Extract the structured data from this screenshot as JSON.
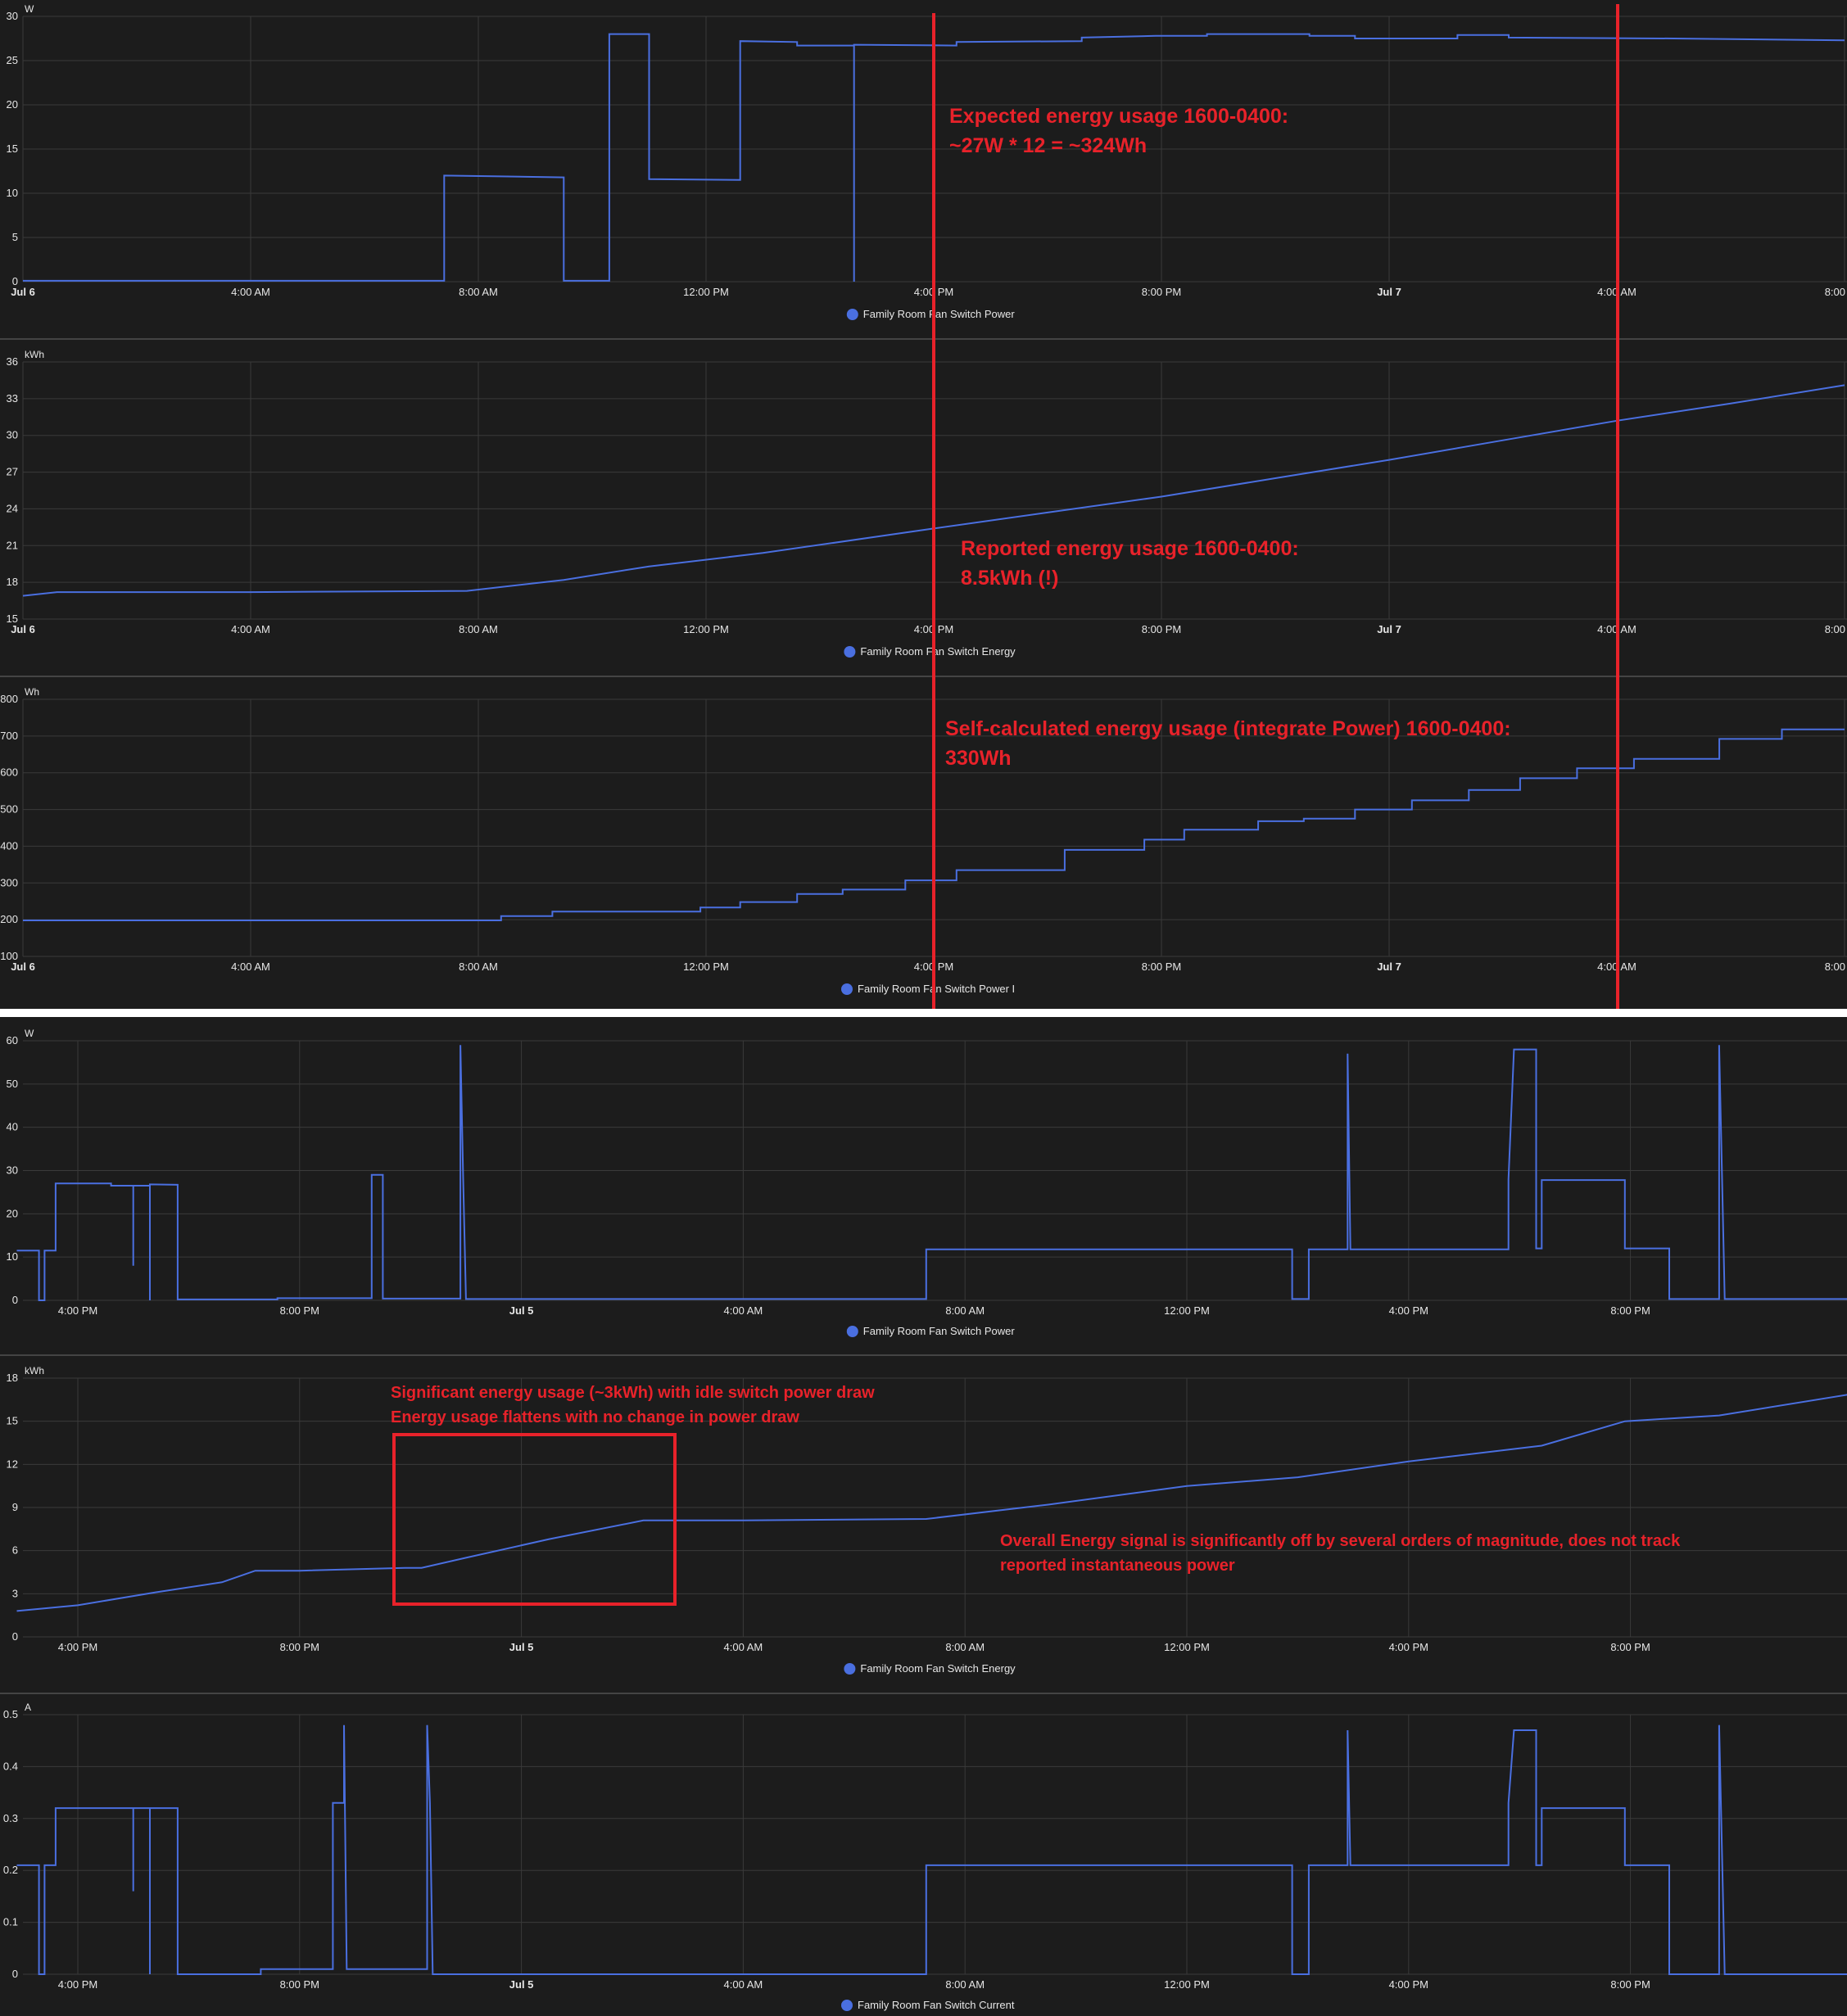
{
  "colors": {
    "background": "#1c1c1c",
    "series": "#4a6fe0",
    "annotation": "#e8222a",
    "grid": "#3a3a3a"
  },
  "chart_data": [
    {
      "type": "line",
      "unit": "W",
      "legend": "Family Room Fan Switch Power",
      "ylim": [
        0,
        30
      ],
      "yticks": [
        0,
        5,
        10,
        15,
        20,
        25,
        30
      ],
      "xlim": [
        0,
        32
      ],
      "xticks": [
        {
          "at": 0,
          "label": "Jul 6",
          "bold": true
        },
        {
          "at": 4,
          "label": "4:00 AM"
        },
        {
          "at": 8,
          "label": "8:00 AM"
        },
        {
          "at": 12,
          "label": "12:00 PM"
        },
        {
          "at": 16,
          "label": "4:00 PM"
        },
        {
          "at": 20,
          "label": "8:00 PM"
        },
        {
          "at": 24,
          "label": "Jul 7",
          "bold": true
        },
        {
          "at": 28,
          "label": "4:00 AM"
        },
        {
          "at": 32,
          "label": "8:00"
        }
      ],
      "points": [
        [
          0,
          0.1
        ],
        [
          7.4,
          0.1
        ],
        [
          7.4,
          12
        ],
        [
          9.5,
          11.8
        ],
        [
          9.5,
          0.1
        ],
        [
          10.3,
          0.1
        ],
        [
          10.3,
          28
        ],
        [
          11,
          28
        ],
        [
          11,
          11.6
        ],
        [
          12.6,
          11.5
        ],
        [
          12.6,
          27.2
        ],
        [
          13.6,
          27.1
        ],
        [
          13.6,
          26.7
        ],
        [
          14.6,
          26.7
        ],
        [
          14.6,
          0
        ],
        [
          14.6,
          26.8
        ],
        [
          16.4,
          26.7
        ],
        [
          16.4,
          27.1
        ],
        [
          18.6,
          27.2
        ],
        [
          18.6,
          27.6
        ],
        [
          19.9,
          27.8
        ],
        [
          20.8,
          27.8
        ],
        [
          20.8,
          28
        ],
        [
          22.6,
          28
        ],
        [
          22.6,
          27.8
        ],
        [
          23.4,
          27.8
        ],
        [
          23.4,
          27.5
        ],
        [
          25.2,
          27.5
        ],
        [
          25.2,
          27.9
        ],
        [
          26.1,
          27.9
        ],
        [
          26.1,
          27.6
        ],
        [
          29,
          27.5
        ],
        [
          32,
          27.3
        ]
      ]
    },
    {
      "type": "line",
      "unit": "kWh",
      "legend": "Family Room Fan Switch Energy",
      "ylim": [
        15,
        36
      ],
      "yticks": [
        15,
        18,
        21,
        24,
        27,
        30,
        33,
        36
      ],
      "xlim": [
        0,
        32
      ],
      "xticks": [
        {
          "at": 0,
          "label": "Jul 6",
          "bold": true
        },
        {
          "at": 4,
          "label": "4:00 AM"
        },
        {
          "at": 8,
          "label": "8:00 AM"
        },
        {
          "at": 12,
          "label": "12:00 PM"
        },
        {
          "at": 16,
          "label": "4:00 PM"
        },
        {
          "at": 20,
          "label": "8:00 PM"
        },
        {
          "at": 24,
          "label": "Jul 7",
          "bold": true
        },
        {
          "at": 28,
          "label": "4:00 AM"
        },
        {
          "at": 32,
          "label": "8:00"
        }
      ],
      "points": [
        [
          0,
          16.9
        ],
        [
          0.6,
          17.2
        ],
        [
          4,
          17.2
        ],
        [
          7.8,
          17.3
        ],
        [
          9.5,
          18.2
        ],
        [
          11,
          19.3
        ],
        [
          13,
          20.4
        ],
        [
          16,
          22.4
        ],
        [
          18,
          23.7
        ],
        [
          20,
          25
        ],
        [
          22,
          26.5
        ],
        [
          24,
          28
        ],
        [
          26,
          29.6
        ],
        [
          28,
          31.2
        ],
        [
          30,
          32.6
        ],
        [
          32,
          34.1
        ]
      ]
    },
    {
      "type": "line",
      "unit": "Wh",
      "legend": "Family Room Fan Switch Power I",
      "ylim": [
        100,
        800
      ],
      "yticks": [
        100,
        200,
        300,
        400,
        500,
        600,
        700,
        800
      ],
      "xlim": [
        0,
        32
      ],
      "xticks": [
        {
          "at": 0,
          "label": "Jul 6",
          "bold": true
        },
        {
          "at": 4,
          "label": "4:00 AM"
        },
        {
          "at": 8,
          "label": "8:00 AM"
        },
        {
          "at": 12,
          "label": "12:00 PM"
        },
        {
          "at": 16,
          "label": "4:00 PM"
        },
        {
          "at": 20,
          "label": "8:00 PM"
        },
        {
          "at": 24,
          "label": "Jul 7",
          "bold": true
        },
        {
          "at": 28,
          "label": "4:00 AM"
        },
        {
          "at": 32,
          "label": "8:00"
        }
      ],
      "points": [
        [
          0,
          198
        ],
        [
          8.4,
          198
        ],
        [
          8.4,
          210
        ],
        [
          9.3,
          210
        ],
        [
          9.3,
          222
        ],
        [
          11.9,
          222
        ],
        [
          11.9,
          233
        ],
        [
          12.6,
          233
        ],
        [
          12.6,
          248
        ],
        [
          13.6,
          248
        ],
        [
          13.6,
          270
        ],
        [
          14.4,
          270
        ],
        [
          14.4,
          282
        ],
        [
          15.5,
          282
        ],
        [
          15.5,
          307
        ],
        [
          16.4,
          307
        ],
        [
          16.4,
          335
        ],
        [
          18.3,
          335
        ],
        [
          18.3,
          390
        ],
        [
          19.7,
          390
        ],
        [
          19.7,
          418
        ],
        [
          20.4,
          418
        ],
        [
          20.4,
          445
        ],
        [
          21.7,
          445
        ],
        [
          21.7,
          468
        ],
        [
          22.5,
          468
        ],
        [
          22.5,
          475
        ],
        [
          23.4,
          475
        ],
        [
          23.4,
          500
        ],
        [
          24.4,
          500
        ],
        [
          24.4,
          525
        ],
        [
          25.4,
          525
        ],
        [
          25.4,
          553
        ],
        [
          26.3,
          553
        ],
        [
          26.3,
          585
        ],
        [
          27.3,
          585
        ],
        [
          27.3,
          612
        ],
        [
          28.3,
          612
        ],
        [
          28.3,
          638
        ],
        [
          29.8,
          638
        ],
        [
          29.8,
          692
        ],
        [
          30.9,
          692
        ],
        [
          30.9,
          718
        ],
        [
          32,
          718
        ]
      ]
    },
    {
      "type": "line",
      "unit": "W",
      "legend": "Family Room Fan Switch Power",
      "ylim": [
        0,
        60
      ],
      "yticks": [
        0,
        10,
        20,
        30,
        40,
        50,
        60
      ],
      "xlim": [
        -1.1,
        32
      ],
      "xticks": [
        {
          "at": 0,
          "label": "4:00 PM"
        },
        {
          "at": 4,
          "label": "8:00 PM"
        },
        {
          "at": 8,
          "label": "Jul 5",
          "bold": true
        },
        {
          "at": 12,
          "label": "4:00 AM"
        },
        {
          "at": 16,
          "label": "8:00 AM"
        },
        {
          "at": 20,
          "label": "12:00 PM"
        },
        {
          "at": 24,
          "label": "4:00 PM"
        },
        {
          "at": 28,
          "label": "8:00 PM"
        }
      ],
      "points": [
        [
          -1.1,
          11.5
        ],
        [
          -0.7,
          11.5
        ],
        [
          -0.7,
          0
        ],
        [
          -0.6,
          0
        ],
        [
          -0.6,
          11.5
        ],
        [
          -0.4,
          11.5
        ],
        [
          -0.4,
          27
        ],
        [
          0.6,
          27
        ],
        [
          0.6,
          26.5
        ],
        [
          1,
          26.5
        ],
        [
          1,
          8
        ],
        [
          1,
          26.5
        ],
        [
          1.3,
          26.5
        ],
        [
          1.3,
          0
        ],
        [
          1.3,
          26.8
        ],
        [
          1.8,
          26.7
        ],
        [
          1.8,
          0.2
        ],
        [
          3.6,
          0.2
        ],
        [
          3.6,
          0.5
        ],
        [
          5.3,
          0.5
        ],
        [
          5.3,
          29
        ],
        [
          5.5,
          29
        ],
        [
          5.5,
          0.4
        ],
        [
          6.9,
          0.4
        ],
        [
          6.9,
          59
        ],
        [
          6.95,
          28
        ],
        [
          7,
          0.3
        ],
        [
          15.3,
          0.3
        ],
        [
          15.3,
          11.8
        ],
        [
          21.9,
          11.8
        ],
        [
          21.9,
          0.3
        ],
        [
          22.2,
          0.3
        ],
        [
          22.2,
          11.8
        ],
        [
          22.9,
          11.8
        ],
        [
          22.9,
          57
        ],
        [
          22.95,
          11.8
        ],
        [
          25.8,
          11.8
        ],
        [
          25.8,
          28
        ],
        [
          25.9,
          58
        ],
        [
          26.3,
          58
        ],
        [
          26.3,
          12
        ],
        [
          26.4,
          12
        ],
        [
          26.4,
          27.8
        ],
        [
          27.9,
          27.8
        ],
        [
          27.9,
          12
        ],
        [
          28.7,
          12
        ],
        [
          28.7,
          0.3
        ],
        [
          29.6,
          0.3
        ],
        [
          29.6,
          59
        ],
        [
          29.7,
          0.3
        ],
        [
          32,
          0.3
        ]
      ]
    },
    {
      "type": "line",
      "unit": "kWh",
      "legend": "Family Room Fan Switch Energy",
      "ylim": [
        0,
        18
      ],
      "yticks": [
        0,
        3,
        6,
        9,
        12,
        15,
        18
      ],
      "xlim": [
        -1.1,
        32
      ],
      "xticks": [
        {
          "at": 0,
          "label": "4:00 PM"
        },
        {
          "at": 4,
          "label": "8:00 PM"
        },
        {
          "at": 8,
          "label": "Jul 5",
          "bold": true
        },
        {
          "at": 12,
          "label": "4:00 AM"
        },
        {
          "at": 16,
          "label": "8:00 AM"
        },
        {
          "at": 20,
          "label": "12:00 PM"
        },
        {
          "at": 24,
          "label": "4:00 PM"
        },
        {
          "at": 28,
          "label": "8:00 PM"
        }
      ],
      "points": [
        [
          -1.1,
          1.8
        ],
        [
          0,
          2.2
        ],
        [
          1.4,
          3.1
        ],
        [
          2.6,
          3.8
        ],
        [
          3.2,
          4.6
        ],
        [
          4,
          4.6
        ],
        [
          5.9,
          4.8
        ],
        [
          6.2,
          4.8
        ],
        [
          7,
          5.5
        ],
        [
          8.5,
          6.8
        ],
        [
          10.2,
          8.1
        ],
        [
          12,
          8.1
        ],
        [
          15.3,
          8.2
        ],
        [
          17.5,
          9.2
        ],
        [
          20,
          10.5
        ],
        [
          22,
          11.1
        ],
        [
          24,
          12.2
        ],
        [
          26.4,
          13.3
        ],
        [
          27.9,
          15
        ],
        [
          29.6,
          15.4
        ],
        [
          32,
          16.9
        ]
      ]
    },
    {
      "type": "line",
      "unit": "A",
      "legend": "Family Room Fan Switch Current",
      "ylim": [
        0,
        0.5
      ],
      "yticks": [
        0,
        0.1,
        0.2,
        0.3,
        0.4,
        0.5
      ],
      "xlim": [
        -1.1,
        32
      ],
      "xticks": [
        {
          "at": 0,
          "label": "4:00 PM"
        },
        {
          "at": 4,
          "label": "8:00 PM"
        },
        {
          "at": 8,
          "label": "Jul 5",
          "bold": true
        },
        {
          "at": 12,
          "label": "4:00 AM"
        },
        {
          "at": 16,
          "label": "8:00 AM"
        },
        {
          "at": 20,
          "label": "12:00 PM"
        },
        {
          "at": 24,
          "label": "4:00 PM"
        },
        {
          "at": 28,
          "label": "8:00 PM"
        }
      ],
      "points": [
        [
          -1.1,
          0.21
        ],
        [
          -0.7,
          0.21
        ],
        [
          -0.7,
          0
        ],
        [
          -0.6,
          0
        ],
        [
          -0.6,
          0.21
        ],
        [
          -0.4,
          0.21
        ],
        [
          -0.4,
          0.32
        ],
        [
          1,
          0.32
        ],
        [
          1,
          0.16
        ],
        [
          1,
          0.32
        ],
        [
          1.3,
          0.32
        ],
        [
          1.3,
          0
        ],
        [
          1.3,
          0.32
        ],
        [
          1.8,
          0.32
        ],
        [
          1.8,
          0
        ],
        [
          3.3,
          0
        ],
        [
          3.3,
          0.01
        ],
        [
          4.6,
          0.01
        ],
        [
          4.6,
          0.33
        ],
        [
          4.8,
          0.33
        ],
        [
          4.8,
          0.48
        ],
        [
          4.85,
          0.01
        ],
        [
          6.3,
          0.01
        ],
        [
          6.3,
          0.48
        ],
        [
          6.35,
          0.33
        ],
        [
          6.4,
          0
        ],
        [
          15.3,
          0
        ],
        [
          15.3,
          0.21
        ],
        [
          21.9,
          0.21
        ],
        [
          21.9,
          0
        ],
        [
          22.2,
          0
        ],
        [
          22.2,
          0.21
        ],
        [
          22.9,
          0.21
        ],
        [
          22.9,
          0.47
        ],
        [
          22.95,
          0.21
        ],
        [
          25.8,
          0.21
        ],
        [
          25.8,
          0.33
        ],
        [
          25.9,
          0.47
        ],
        [
          26.3,
          0.47
        ],
        [
          26.3,
          0.21
        ],
        [
          26.4,
          0.21
        ],
        [
          26.4,
          0.32
        ],
        [
          27.9,
          0.32
        ],
        [
          27.9,
          0.21
        ],
        [
          28.7,
          0.21
        ],
        [
          28.7,
          0
        ],
        [
          29.6,
          0
        ],
        [
          29.6,
          0.48
        ],
        [
          29.7,
          0
        ],
        [
          32,
          0
        ]
      ]
    }
  ],
  "annotations": [
    "Expected energy usage 1600-0400:",
    "~27W * 12 = ~324Wh",
    "Reported energy usage 1600-0400:",
    "8.5kWh (!)",
    "Self-calculated energy usage (integrate Power) 1600-0400:",
    "330Wh",
    "Significant energy usage (~3kWh) with idle switch power draw",
    "Energy usage flattens with no change in power draw",
    "Overall Energy signal is significantly off by several orders of magnitude, does not track",
    "reported instantaneous power"
  ]
}
